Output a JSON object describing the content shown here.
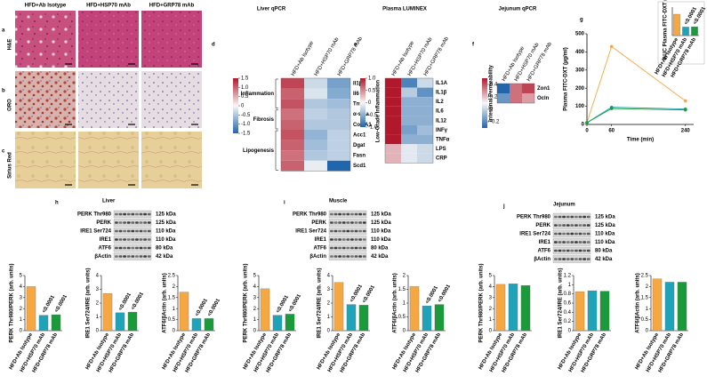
{
  "histology": {
    "letters": [
      "a",
      "b",
      "c"
    ],
    "columns": [
      "HFD+Ab Isotype",
      "HFD+HSP70 mAb",
      "HFD+GRP78 mAb"
    ],
    "rows": [
      "H&E",
      "ORO",
      "Sirius Red"
    ]
  },
  "sections": [
    {
      "letter": "h",
      "title": "Liver",
      "blot_labels": [
        "PERK Thr980",
        "PERK",
        "IRE1 Ser724",
        "IRE1",
        "ATF6",
        "βActin"
      ],
      "blot_sizes": [
        "125 kDa",
        "125 kDa",
        "110 kDa",
        "110 kDa",
        "80 kDa",
        "42 kDa"
      ]
    },
    {
      "letter": "i",
      "title": "Muscle",
      "blot_labels": [
        "PERK Thr980",
        "PERK",
        "IRE1 Ser724",
        "IRE1",
        "ATF6",
        "βActin"
      ],
      "blot_sizes": [
        "125 kDa",
        "125 kDa",
        "110 kDa",
        "110 kDa",
        "80 kDa",
        "42 kDa"
      ]
    },
    {
      "letter": "j",
      "title": "Jejunum",
      "blot_labels": [
        "PERK Thr980",
        "PERK",
        "IRE1 Ser724",
        "IRE1",
        "ATF6",
        "βActin"
      ],
      "blot_sizes": [
        "125 kDa",
        "125 kDa",
        "110 kDa",
        "110 kDa",
        "80 kDa",
        "42 kDa"
      ]
    }
  ],
  "chart_data": [
    {
      "type": "heatmap",
      "letter": "d",
      "title": "Liver qPCR",
      "columns": [
        "HFD+Ab Isotype",
        "HFD+HSP70 mAb",
        "HFD+GRP78 mAb"
      ],
      "rows": [
        "Il1β",
        "Il6",
        "Tnfα",
        "α-sma",
        "Col1A1",
        "Acc1",
        "Dgat",
        "Fasn",
        "Scd1"
      ],
      "values": [
        [
          1.2,
          -0.3,
          -0.9
        ],
        [
          1.0,
          -0.2,
          -0.8
        ],
        [
          1.1,
          -0.5,
          -0.6
        ],
        [
          0.9,
          -0.4,
          -0.5
        ],
        [
          1.0,
          -0.5,
          -0.5
        ],
        [
          1.1,
          -0.7,
          -0.4
        ],
        [
          1.0,
          -0.6,
          -0.4
        ],
        [
          0.9,
          -0.5,
          -0.4
        ],
        [
          1.0,
          -0.1,
          -1.5
        ]
      ],
      "clim": [
        -1.5,
        1.5
      ],
      "colorbar_ticks": [
        1.5,
        {
          "value": 1,
          "label": "1.0"
        },
        0.5,
        0,
        -0.5,
        {
          "value": -1,
          "label": "-1.0"
        },
        -1.5
      ],
      "groups": [
        {
          "label": "Inflammation",
          "rows": [
            0,
            2
          ]
        },
        {
          "label": "Fibrosis",
          "rows": [
            3,
            4
          ]
        },
        {
          "label": "Lipogenesis",
          "rows": [
            5,
            8
          ]
        }
      ]
    },
    {
      "type": "heatmap",
      "letter": "e",
      "title": "Plasma LUMINEX",
      "columns": [
        "HFD+Ab Isotype",
        "HFD+HSP70 mAb",
        "HFD+GRP78 mAb"
      ],
      "rows": [
        "IL1A",
        "IL1β",
        "IL2",
        "IL6",
        "IL12",
        "INFγ",
        "TNFα",
        "LPS",
        "CRP"
      ],
      "values": [
        [
          1.0,
          -0.8,
          -0.2
        ],
        [
          1.0,
          -0.3,
          -0.7
        ],
        [
          1.0,
          -0.5,
          -0.5
        ],
        [
          1.0,
          -0.5,
          -0.5
        ],
        [
          1.0,
          -0.5,
          -0.5
        ],
        [
          1.0,
          -0.6,
          -0.4
        ],
        [
          1.0,
          -0.5,
          -0.5
        ],
        [
          0.3,
          -0.1,
          -0.2
        ],
        [
          0.3,
          -0.1,
          -0.2
        ]
      ],
      "clim": [
        -1,
        1
      ],
      "colorbar_ticks": [
        {
          "value": 1,
          "label": "1.0"
        },
        0.5,
        0,
        -0.5,
        {
          "value": -1,
          "label": "-1.0"
        }
      ],
      "groups": [
        {
          "label": "Low-Grade Inflammation",
          "rows": [
            0,
            6
          ]
        }
      ]
    },
    {
      "type": "heatmap",
      "letter": "f",
      "title": "Jejunum qPCR",
      "columns": [
        "HFD+Ab Isotype",
        "HFD+HSP70 mAb",
        "HFD+GRP78 mAb"
      ],
      "rows": [
        "Zon1",
        "Ocln"
      ],
      "values": [
        [
          -0.3,
          0.3,
          0.4
        ],
        [
          -0.2,
          0.3,
          0.2
        ]
      ],
      "clim": [
        -0.3,
        0.5
      ],
      "colorbar_ticks": [
        0.4,
        0.2,
        0,
        -0.2
      ],
      "groups": [
        {
          "label": "Intestinal Permeability",
          "rows": [
            0,
            1
          ]
        }
      ]
    },
    {
      "type": "line",
      "letter": "g",
      "ylabel": "Plasma FITC-DXT (µg/ml)",
      "xlabel": "Time (min)",
      "x": [
        0,
        60,
        240
      ],
      "xlim": [
        0,
        260
      ],
      "xticks": [
        0,
        60,
        240
      ],
      "ylim": [
        0,
        500
      ],
      "yticks": [
        0,
        100,
        200,
        300,
        400,
        500
      ],
      "series": [
        {
          "color": "#f5a742",
          "values": [
            10,
            430,
            130
          ]
        },
        {
          "color": "#1fa3b8",
          "values": [
            10,
            95,
            85
          ]
        },
        {
          "color": "#1a9a3a",
          "values": [
            10,
            88,
            80
          ]
        }
      ]
    },
    {
      "type": "bar",
      "ylabel": "AUC Plasma FITC-DXT (µg/ml)",
      "categories": [
        "HFD+Ab Isotype",
        "HFD+HSP70 mAb",
        "HFD+GRP78 mAb"
      ],
      "values": [
        75,
        30,
        31
      ],
      "colors": [
        "#f5a742",
        "#1fa3b8",
        "#1a9a3a"
      ],
      "ylim": [
        0,
        100
      ],
      "pvalues": [
        "<0.0001",
        "<0.0001"
      ]
    },
    {
      "type": "bar",
      "ylabel": "PERK Thr980/PERK (arb. units)",
      "categories": [
        "HFD+Ab Isotype",
        "HFD+HSP70 mAb",
        "HFD+GRP78 mAb"
      ],
      "values": [
        4.0,
        1.4,
        1.45
      ],
      "colors": [
        "#f5a742",
        "#1fa3b8",
        "#1a9a3a"
      ],
      "ylim": [
        0,
        5
      ],
      "yticks": [
        0,
        1,
        2,
        3,
        4,
        5
      ],
      "pvalues": [
        "<0.0001",
        "<0.0001"
      ]
    },
    {
      "type": "bar",
      "ylabel": "IRE1 Ser724/IRE (arb. units)",
      "categories": [
        "HFD+Ab Isotype",
        "HFD+HSP70 mAb",
        "HFD+GRP78 mAb"
      ],
      "values": [
        2.7,
        1.3,
        1.35
      ],
      "colors": [
        "#f5a742",
        "#1fa3b8",
        "#1a9a3a"
      ],
      "ylim": [
        0,
        4
      ],
      "yticks": [
        0,
        1,
        2,
        3,
        4
      ],
      "pvalues": [
        "<0.0001",
        "<0.0001"
      ]
    },
    {
      "type": "bar",
      "ylabel": "ATF6/βActin (arb. units)",
      "categories": [
        "HFD+Ab Isotype",
        "HFD+HSP70 mAb",
        "HFD+GRP78 mAb"
      ],
      "values": [
        1.75,
        0.55,
        0.55
      ],
      "colors": [
        "#f5a742",
        "#1fa3b8",
        "#1a9a3a"
      ],
      "ylim": [
        0,
        2.5
      ],
      "yticks": [
        0,
        0.5,
        1,
        1.5,
        2,
        2.5
      ],
      "pvalues": [
        "<0.0001",
        "<0.0001"
      ]
    },
    {
      "type": "bar",
      "ylabel": "PERK Thr980/PERK (arb. units)",
      "categories": [
        "HFD+Ab Isotype",
        "HFD+HSP70 mAb",
        "HFD+GRP78 mAb"
      ],
      "values": [
        3.8,
        1.4,
        1.5
      ],
      "colors": [
        "#f5a742",
        "#1fa3b8",
        "#1a9a3a"
      ],
      "ylim": [
        0,
        5
      ],
      "yticks": [
        0,
        1,
        2,
        3,
        4,
        5
      ],
      "pvalues": [
        "<0.0001",
        "<0.0001"
      ]
    },
    {
      "type": "bar",
      "ylabel": "IRE1 Ser724/IRE (arb. units)",
      "categories": [
        "HFD+Ab Isotype",
        "HFD+HSP70 mAb",
        "HFD+GRP78 mAb"
      ],
      "values": [
        3.5,
        1.9,
        1.85
      ],
      "colors": [
        "#f5a742",
        "#1fa3b8",
        "#1a9a3a"
      ],
      "ylim": [
        0,
        4
      ],
      "yticks": [
        0,
        1,
        2,
        3,
        4
      ],
      "pvalues": [
        "<0.0001",
        "<0.0001"
      ]
    },
    {
      "type": "bar",
      "ylabel": "ATF6/βActin (arb. units)",
      "categories": [
        "HFD+Ab Isotype",
        "HFD+HSP70 mAb",
        "HFD+GRP78 mAb"
      ],
      "values": [
        1.6,
        0.9,
        0.95
      ],
      "colors": [
        "#f5a742",
        "#1fa3b8",
        "#1a9a3a"
      ],
      "ylim": [
        0,
        2
      ],
      "yticks": [
        0,
        0.5,
        1,
        1.5,
        2
      ],
      "pvalues": [
        "<0.0001",
        "<0.0001"
      ]
    },
    {
      "type": "bar",
      "ylabel": "PERK Thr980/PERK (arb. units)",
      "categories": [
        "HFD+Ab Isotype",
        "HFD+HSP70 mAb",
        "HFD+GRP78 mAb"
      ],
      "values": [
        4.2,
        4.25,
        4.1
      ],
      "colors": [
        "#f5a742",
        "#1fa3b8",
        "#1a9a3a"
      ],
      "ylim": [
        0,
        5
      ],
      "yticks": [
        0,
        1,
        2,
        3,
        4,
        5
      ]
    },
    {
      "type": "bar",
      "ylabel": "IRE1 Ser724/IRE (arb. units)",
      "categories": [
        "HFD+Ab Isotype",
        "HFD+HSP70 mAb",
        "HFD+GRP78 mAb"
      ],
      "values": [
        0.85,
        0.87,
        0.86
      ],
      "colors": [
        "#f5a742",
        "#1fa3b8",
        "#1a9a3a"
      ],
      "ylim": [
        0,
        1.2
      ],
      "yticks": [
        0,
        0.2,
        0.4,
        0.6,
        0.8,
        1,
        1.2
      ]
    },
    {
      "type": "bar",
      "ylabel": "ATF6/βActin (arb. units)",
      "categories": [
        "HFD+Ab Isotype",
        "HFD+HSP70 mAb",
        "HFD+GRP78 mAb"
      ],
      "values": [
        2.35,
        2.2,
        2.2
      ],
      "colors": [
        "#f5a742",
        "#1fa3b8",
        "#1a9a3a"
      ],
      "ylim": [
        0,
        2.5
      ],
      "yticks": [
        0,
        0.5,
        1,
        1.5,
        2,
        2.5
      ]
    }
  ]
}
